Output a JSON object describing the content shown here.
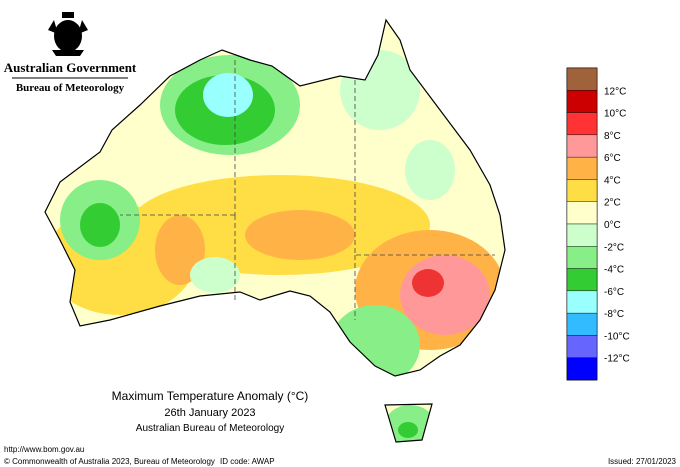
{
  "header": {
    "government": "Australian Government",
    "agency": "Bureau of Meteorology"
  },
  "map": {
    "title": "Maximum Temperature Anomaly (°C)",
    "date": "26th January 2023",
    "source": "Australian Bureau of Meteorology"
  },
  "legend": {
    "colors": [
      "#a0623a",
      "#cc0000",
      "#ff3333",
      "#ff9999",
      "#ffb347",
      "#ffdd44",
      "#ffffcc",
      "#ccffcc",
      "#88ee88",
      "#33cc33",
      "#99ffff",
      "#33bbff",
      "#6666ff",
      "#0000ff"
    ],
    "labels": [
      "12°C",
      "10°C",
      "8°C",
      "6°C",
      "4°C",
      "2°C",
      "0°C",
      "-2°C",
      "-4°C",
      "-6°C",
      "-8°C",
      "-10°C",
      "-12°C"
    ]
  },
  "footer": {
    "url": "http://www.bom.gov.au",
    "copyright": "© Commonwealth of Australia 2023, Bureau of Meteorology",
    "id": "ID code: AWAP",
    "issued": "Issued: 27/01/2023"
  }
}
